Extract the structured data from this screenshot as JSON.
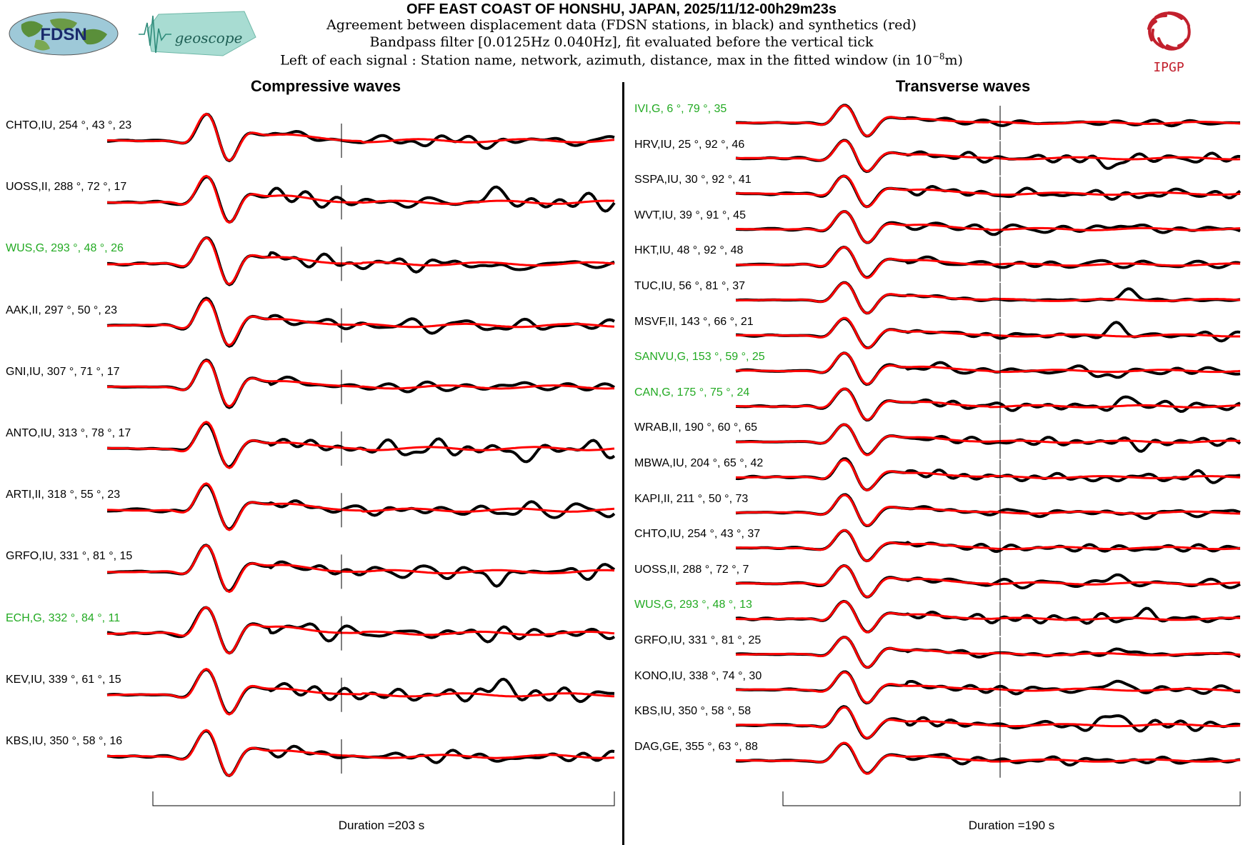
{
  "header": {
    "title": "OFF EAST COAST OF HONSHU, JAPAN, 2025/11/12-00h29m23s",
    "line1": "Agreement between displacement data (FDSN stations, in black) and synthetics (red)",
    "line2": "Bandpass filter [0.0125Hz 0.040Hz], fit evaluated before the vertical tick",
    "line3_prefix": "Left of each signal : Station name, network, azimuth, distance, max in the fitted window (in 10",
    "line3_exp": "−8",
    "line3_suffix": "m)"
  },
  "logos": {
    "fdsn": "FDSN",
    "geoscope": "geoscope",
    "ipgp": "IPGP"
  },
  "colors": {
    "data": "#000000",
    "synthetic": "#ff0000",
    "geoscope_label": "#22aa22",
    "default_label": "#000000"
  },
  "chart_data": [
    {
      "type": "line",
      "title": "Compressive waves",
      "duration_label": "Duration =203 s",
      "series": [
        {
          "name": "data"
        },
        {
          "name": "synthetics"
        }
      ],
      "stations": [
        {
          "station": "CHTO",
          "network": "IU",
          "azimuth": 254,
          "distance": 43,
          "max": 23,
          "geoscope": false,
          "label": "CHTO,IU, 254 °, 43 °, 23"
        },
        {
          "station": "UOSS",
          "network": "II",
          "azimuth": 288,
          "distance": 72,
          "max": 17,
          "geoscope": false,
          "label": "UOSS,II, 288 °, 72 °, 17"
        },
        {
          "station": "WUS",
          "network": "G",
          "azimuth": 293,
          "distance": 48,
          "max": 26,
          "geoscope": true,
          "label": "WUS,G, 293 °, 48 °, 26"
        },
        {
          "station": "AAK",
          "network": "II",
          "azimuth": 297,
          "distance": 50,
          "max": 23,
          "geoscope": false,
          "label": "AAK,II, 297 °, 50 °, 23"
        },
        {
          "station": "GNI",
          "network": "IU",
          "azimuth": 307,
          "distance": 71,
          "max": 17,
          "geoscope": false,
          "label": "GNI,IU, 307 °, 71 °, 17"
        },
        {
          "station": "ANTO",
          "network": "IU",
          "azimuth": 313,
          "distance": 78,
          "max": 17,
          "geoscope": false,
          "label": "ANTO,IU, 313 °, 78 °, 17"
        },
        {
          "station": "ARTI",
          "network": "II",
          "azimuth": 318,
          "distance": 55,
          "max": 23,
          "geoscope": false,
          "label": "ARTI,II, 318 °, 55 °, 23"
        },
        {
          "station": "GRFO",
          "network": "IU",
          "azimuth": 331,
          "distance": 81,
          "max": 15,
          "geoscope": false,
          "label": "GRFO,IU, 331 °, 81 °, 15"
        },
        {
          "station": "ECH",
          "network": "G",
          "azimuth": 332,
          "distance": 84,
          "max": 11,
          "geoscope": true,
          "label": "ECH,G, 332 °, 84 °, 11"
        },
        {
          "station": "KEV",
          "network": "IU",
          "azimuth": 339,
          "distance": 61,
          "max": 15,
          "geoscope": false,
          "label": "KEV,IU, 339 °, 61 °, 15"
        },
        {
          "station": "KBS",
          "network": "IU",
          "azimuth": 350,
          "distance": 58,
          "max": 16,
          "geoscope": false,
          "label": "KBS,IU, 350 °, 58 °, 16"
        }
      ]
    },
    {
      "type": "line",
      "title": "Transverse waves",
      "duration_label": "Duration =190 s",
      "series": [
        {
          "name": "data"
        },
        {
          "name": "synthetics"
        }
      ],
      "stations": [
        {
          "station": "IVI",
          "network": "G",
          "azimuth": 6,
          "distance": 79,
          "max": 35,
          "geoscope": true,
          "label": "IVI,G, 6 °, 79 °, 35"
        },
        {
          "station": "HRV",
          "network": "IU",
          "azimuth": 25,
          "distance": 92,
          "max": 46,
          "geoscope": false,
          "label": "HRV,IU, 25 °, 92 °, 46"
        },
        {
          "station": "SSPA",
          "network": "IU",
          "azimuth": 30,
          "distance": 92,
          "max": 41,
          "geoscope": false,
          "label": "SSPA,IU, 30 °, 92 °, 41"
        },
        {
          "station": "WVT",
          "network": "IU",
          "azimuth": 39,
          "distance": 91,
          "max": 45,
          "geoscope": false,
          "label": "WVT,IU, 39 °, 91 °, 45"
        },
        {
          "station": "HKT",
          "network": "IU",
          "azimuth": 48,
          "distance": 92,
          "max": 48,
          "geoscope": false,
          "label": "HKT,IU, 48 °, 92 °, 48"
        },
        {
          "station": "TUC",
          "network": "IU",
          "azimuth": 56,
          "distance": 81,
          "max": 37,
          "geoscope": false,
          "label": "TUC,IU, 56 °, 81 °, 37"
        },
        {
          "station": "MSVF",
          "network": "II",
          "azimuth": 143,
          "distance": 66,
          "max": 21,
          "geoscope": false,
          "label": "MSVF,II, 143 °, 66 °, 21"
        },
        {
          "station": "SANVU",
          "network": "G",
          "azimuth": 153,
          "distance": 59,
          "max": 25,
          "geoscope": true,
          "label": "SANVU,G, 153 °, 59 °, 25"
        },
        {
          "station": "CAN",
          "network": "G",
          "azimuth": 175,
          "distance": 75,
          "max": 24,
          "geoscope": true,
          "label": "CAN,G, 175 °, 75 °, 24"
        },
        {
          "station": "WRAB",
          "network": "II",
          "azimuth": 190,
          "distance": 60,
          "max": 65,
          "geoscope": false,
          "label": "WRAB,II, 190 °, 60 °, 65"
        },
        {
          "station": "MBWA",
          "network": "IU",
          "azimuth": 204,
          "distance": 65,
          "max": 42,
          "geoscope": false,
          "label": "MBWA,IU, 204 °, 65 °, 42"
        },
        {
          "station": "KAPI",
          "network": "II",
          "azimuth": 211,
          "distance": 50,
          "max": 73,
          "geoscope": false,
          "label": "KAPI,II, 211 °, 50 °, 73"
        },
        {
          "station": "CHTO",
          "network": "IU",
          "azimuth": 254,
          "distance": 43,
          "max": 37,
          "geoscope": false,
          "label": "CHTO,IU, 254 °, 43 °, 37"
        },
        {
          "station": "UOSS",
          "network": "II",
          "azimuth": 288,
          "distance": 72,
          "max": 7,
          "geoscope": false,
          "label": "UOSS,II, 288 °, 72 °, 7"
        },
        {
          "station": "WUS",
          "network": "G",
          "azimuth": 293,
          "distance": 48,
          "max": 13,
          "geoscope": true,
          "label": "WUS,G, 293 °, 48 °, 13"
        },
        {
          "station": "GRFO",
          "network": "IU",
          "azimuth": 331,
          "distance": 81,
          "max": 25,
          "geoscope": false,
          "label": "GRFO,IU, 331 °, 81 °, 25"
        },
        {
          "station": "KONO",
          "network": "IU",
          "azimuth": 338,
          "distance": 74,
          "max": 30,
          "geoscope": false,
          "label": "KONO,IU, 338 °, 74 °, 30"
        },
        {
          "station": "KBS",
          "network": "IU",
          "azimuth": 350,
          "distance": 58,
          "max": 58,
          "geoscope": false,
          "label": "KBS,IU, 350 °, 58 °, 58"
        },
        {
          "station": "DAG",
          "network": "GE",
          "azimuth": 355,
          "distance": 63,
          "max": 88,
          "geoscope": false,
          "label": "DAG,GE, 355 °, 63 °, 88"
        }
      ]
    }
  ]
}
